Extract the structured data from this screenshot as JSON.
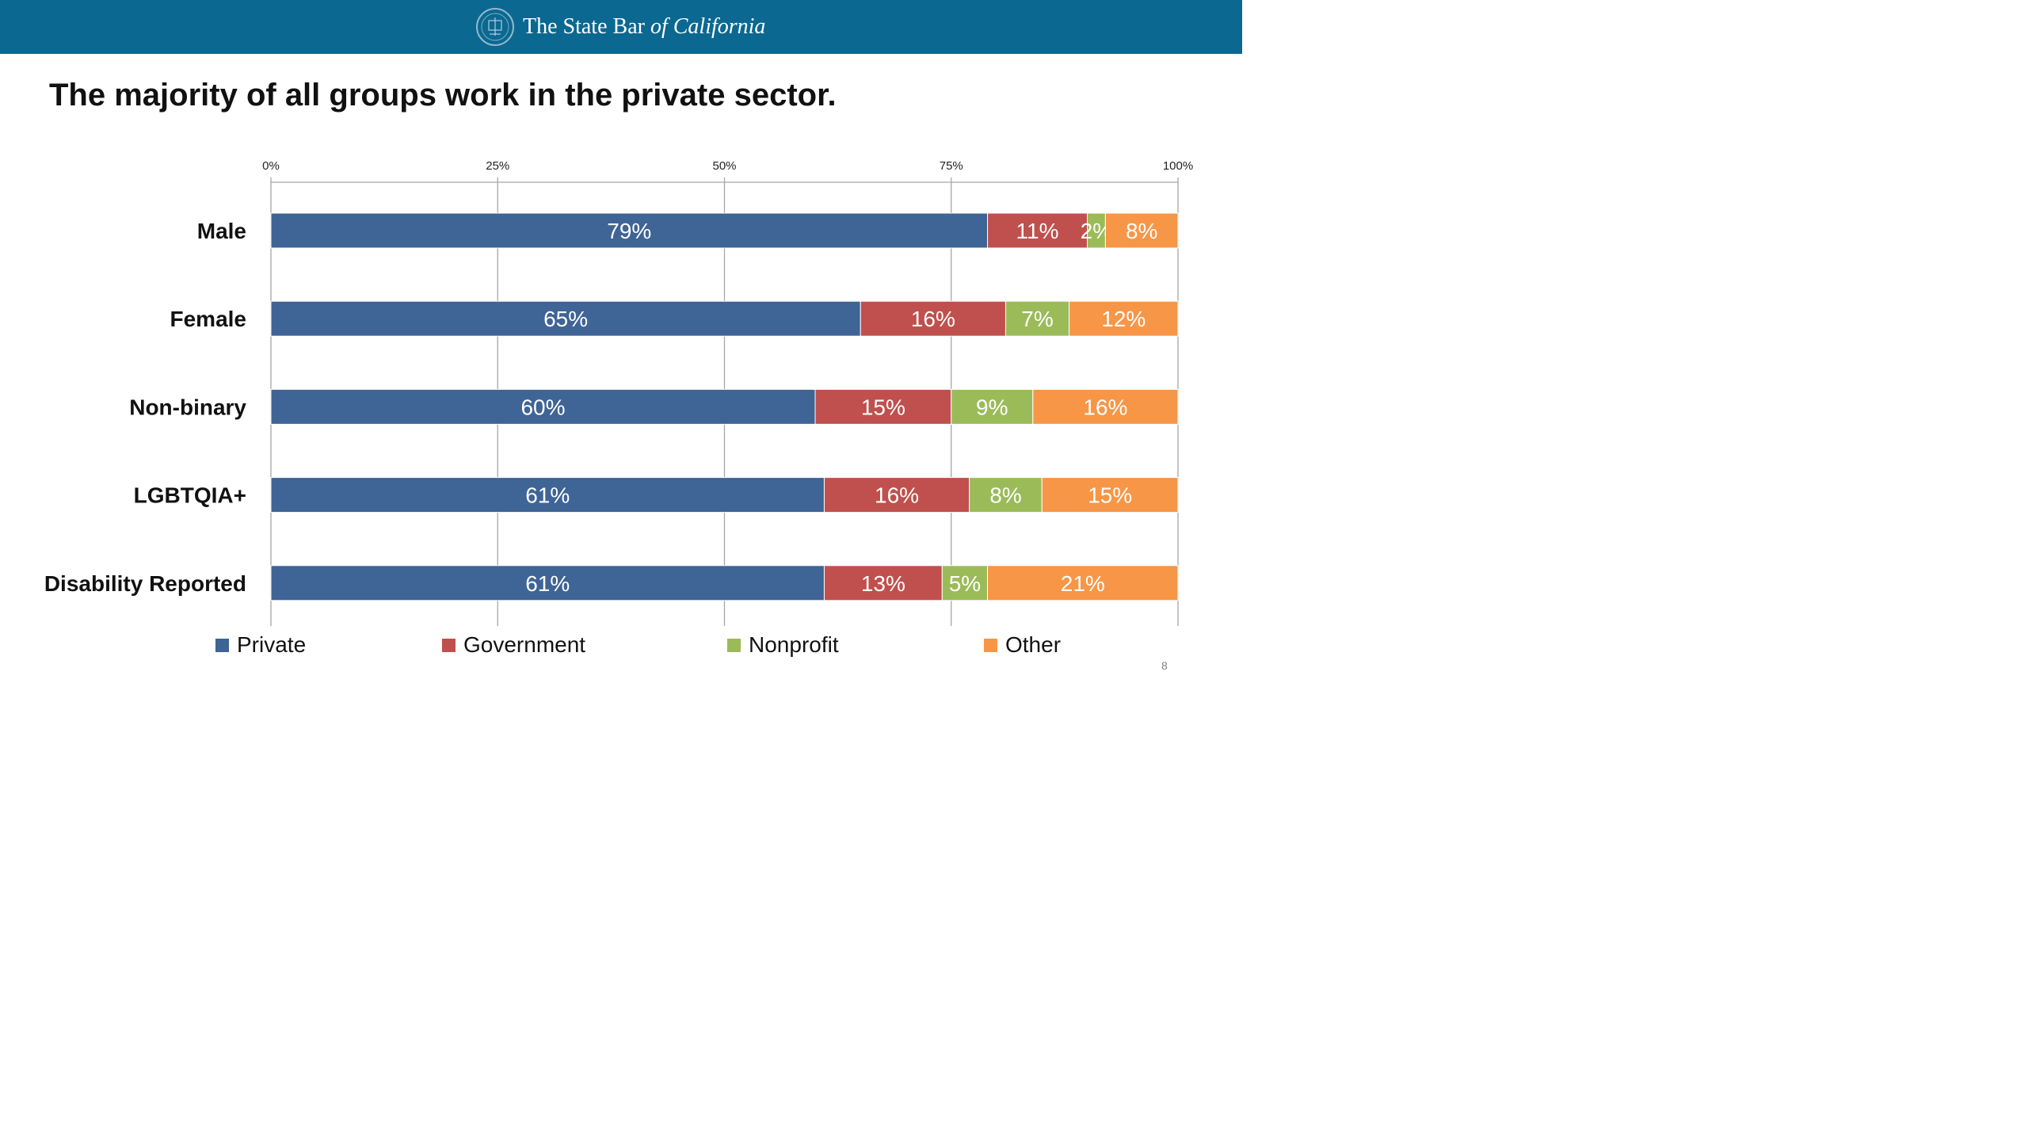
{
  "header": {
    "brand_prefix": "The State Bar ",
    "brand_italic": "of California",
    "seal_icon": "state-bar-seal-icon",
    "background": "#0b6891"
  },
  "slide": {
    "title": "The majority of all groups work in the private sector.",
    "page_number": "8"
  },
  "chart_data": {
    "type": "bar",
    "orientation": "horizontal",
    "stacked": true,
    "percent": true,
    "categories": [
      "Male",
      "Female",
      "Non-binary",
      "LGBTQIA+",
      "Disability Reported"
    ],
    "series": [
      {
        "name": "Private",
        "color": "#3f6496",
        "values": [
          79,
          65,
          60,
          61,
          61
        ],
        "labels": [
          "79%",
          "65%",
          "60%",
          "61%",
          "61%"
        ]
      },
      {
        "name": "Government",
        "color": "#c0504d",
        "values": [
          11,
          16,
          15,
          16,
          13
        ],
        "labels": [
          "11%",
          "16%",
          "15%",
          "16%",
          "13%"
        ]
      },
      {
        "name": "Nonprofit",
        "color": "#9bbb59",
        "values": [
          2,
          7,
          9,
          8,
          5
        ],
        "labels": [
          "2%",
          "7%",
          "9%",
          "8%",
          "5%"
        ]
      },
      {
        "name": "Other",
        "color": "#f79646",
        "values": [
          8,
          12,
          16,
          15,
          21
        ],
        "labels": [
          "8%",
          "12%",
          "16%",
          "15%",
          "21%"
        ]
      }
    ],
    "xlim": [
      0,
      100
    ],
    "xticks": [
      0,
      25,
      50,
      75,
      100
    ],
    "xtick_labels": [
      "0%",
      "25%",
      "50%",
      "75%",
      "100%"
    ],
    "grid": true,
    "x_axis_position": "top",
    "legend_position": "bottom"
  }
}
